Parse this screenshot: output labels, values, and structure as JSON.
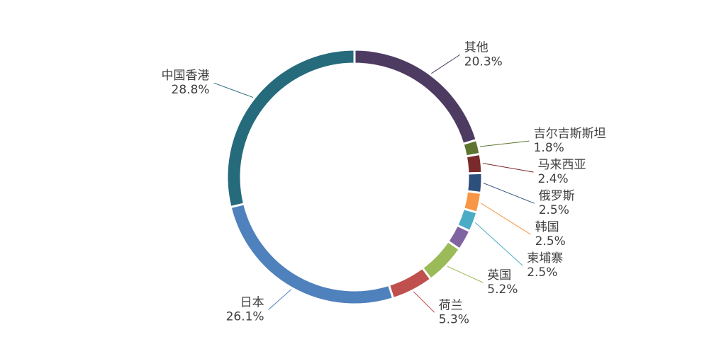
{
  "chart_data": {
    "type": "donut",
    "categories": [
      "其他",
      "吉尔吉斯斯坦",
      "马来西亚",
      "俄罗斯",
      "韩国",
      "柬埔寨",
      null,
      "英国",
      "荷兰",
      "日本",
      "中国香港"
    ],
    "values": [
      20.3,
      1.8,
      2.4,
      2.5,
      2.5,
      2.5,
      2.6,
      5.2,
      5.3,
      26.1,
      28.8
    ],
    "value_labels": [
      "20.3%",
      "1.8%",
      "2.4%",
      "2.5%",
      "2.5%",
      "2.5%",
      null,
      "5.2%",
      "5.3%",
      "26.1%",
      "28.8%"
    ],
    "colors": [
      "#4e3b62",
      "#5e7530",
      "#7a2a2a",
      "#2d4f7c",
      "#f79646",
      "#4bacc6",
      "#8064a2",
      "#9bbb59",
      "#c0504d",
      "#4f81bd",
      "#256b7c"
    ]
  }
}
